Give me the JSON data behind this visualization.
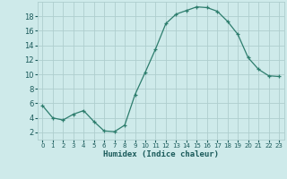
{
  "x": [
    0,
    1,
    2,
    3,
    4,
    5,
    6,
    7,
    8,
    9,
    10,
    11,
    12,
    13,
    14,
    15,
    16,
    17,
    18,
    19,
    20,
    21,
    22,
    23
  ],
  "y": [
    5.7,
    4.0,
    3.7,
    4.5,
    5.0,
    3.5,
    2.2,
    2.1,
    3.0,
    7.2,
    10.3,
    13.5,
    17.0,
    18.3,
    18.8,
    19.3,
    19.2,
    18.7,
    17.3,
    15.5,
    12.3,
    10.7,
    9.8,
    9.7
  ],
  "xlabel": "Humidex (Indice chaleur)",
  "xlim": [
    -0.5,
    23.5
  ],
  "ylim": [
    1.0,
    20.0
  ],
  "yticks": [
    2,
    4,
    6,
    8,
    10,
    12,
    14,
    16,
    18
  ],
  "xticks": [
    0,
    1,
    2,
    3,
    4,
    5,
    6,
    7,
    8,
    9,
    10,
    11,
    12,
    13,
    14,
    15,
    16,
    17,
    18,
    19,
    20,
    21,
    22,
    23
  ],
  "line_color": "#2d7d6d",
  "marker": "+",
  "markersize": 3.5,
  "bg_color": "#ceeaea",
  "grid_color": "#aecece",
  "font_color": "#1a5a5a"
}
